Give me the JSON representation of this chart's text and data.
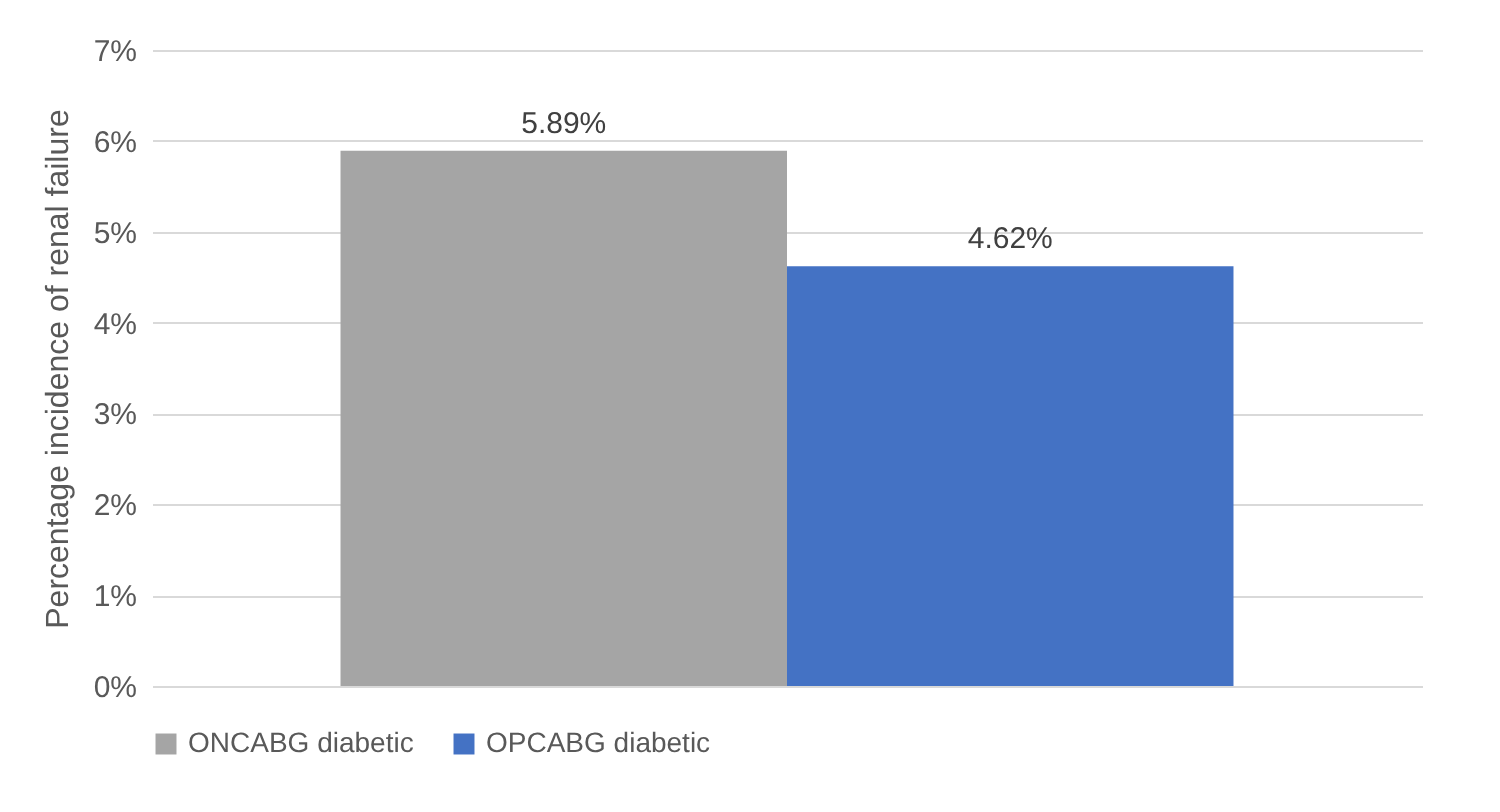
{
  "chart_data": {
    "type": "bar",
    "ylabel": "Percentage incidence of renal failure",
    "categories": [
      null
    ],
    "series": [
      {
        "name": "ONCABG diabetic",
        "color": "#a5a5a5",
        "values": [
          5.89
        ],
        "value_labels": [
          "5.89%"
        ]
      },
      {
        "name": "OPCABG diabetic",
        "color": "#4472c4",
        "values": [
          4.62
        ],
        "value_labels": [
          "4.62%"
        ]
      }
    ],
    "ylim": [
      0,
      7
    ],
    "yticks": [
      {
        "value": 0,
        "label": "0%"
      },
      {
        "value": 1,
        "label": "1%"
      },
      {
        "value": 2,
        "label": "2%"
      },
      {
        "value": 3,
        "label": "3%"
      },
      {
        "value": 4,
        "label": "4%"
      },
      {
        "value": 5,
        "label": "5%"
      },
      {
        "value": 6,
        "label": "6%"
      },
      {
        "value": 7,
        "label": "7%"
      }
    ],
    "grid": "y",
    "legend": "bottom",
    "tick_labels": "y"
  }
}
